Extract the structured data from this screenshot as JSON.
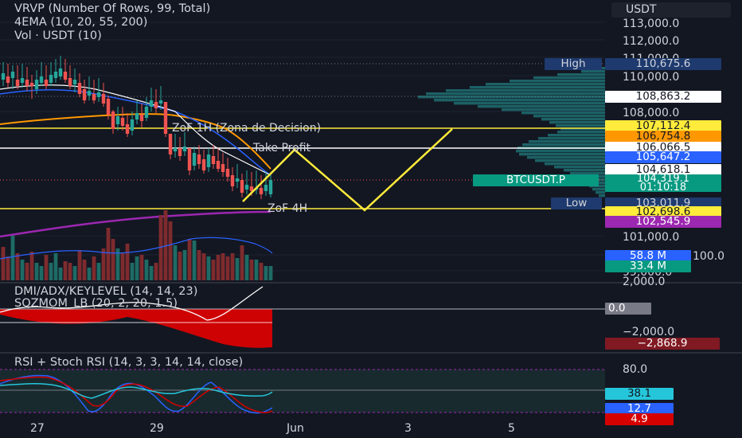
{
  "header": {
    "vrvp": "VRVP (Number Of Rows, 99, Total)",
    "ema": "4EMA (10, 20, 55, 200)",
    "vol": "Vol · USDT (10)",
    "currency": "USDT"
  },
  "price_axis": [
    "113,000.0",
    "112,000.0",
    "111,000.0",
    "110,000.0",
    "108,000.0",
    "101,000.0",
    "100.0",
    "99,000.0"
  ],
  "price_tags": {
    "high_label": "High",
    "high_value": "110,675.6",
    "p108": "108,863.2",
    "p107": "107,112.4",
    "p106_7": "106,754.8",
    "p106": "106,066.5",
    "p105": "105,647.2",
    "p104_6": "104,618.1",
    "symbol": "BTCUSDT.P",
    "last_price": "104,319.1",
    "countdown": "01:10:18",
    "low_label": "Low",
    "low_value": "103,011.9",
    "p102_6": "102,698.6",
    "p102_5": "102,545.9",
    "vol1": "58.8 M",
    "vol2": "33.4 M"
  },
  "annotations": {
    "zof1h": "ZoF 1H (Zona de Decision)",
    "take_profit": "Take Profit",
    "zof4h": "ZoF 4H"
  },
  "dmi_panel": {
    "title1": "DMI/ADX/KEYLEVEL (14, 14, 23)",
    "title2": "SQZMOM_LB (20, 2, 20, 1.5)",
    "axis_top": "2,000.0",
    "zero_tag": "0.0",
    "axis_neg": "−2,000.0",
    "value_tag": "−2,868.9"
  },
  "rsi_panel": {
    "title": "RSI + Stoch RSI (14, 3, 3, 14, 14, close)",
    "axis_80": "80.0",
    "rsi_tag": "38.1",
    "stoch_k_tag": "12.7",
    "stoch_d_tag": "4.9"
  },
  "time_axis": [
    "27",
    "29",
    "Jun",
    "3",
    "5"
  ],
  "colors": {
    "background": "#131722",
    "up": "#26a69a",
    "down": "#ef5350",
    "yellow": "#ffeb3b",
    "purple": "#9c27b0"
  }
}
